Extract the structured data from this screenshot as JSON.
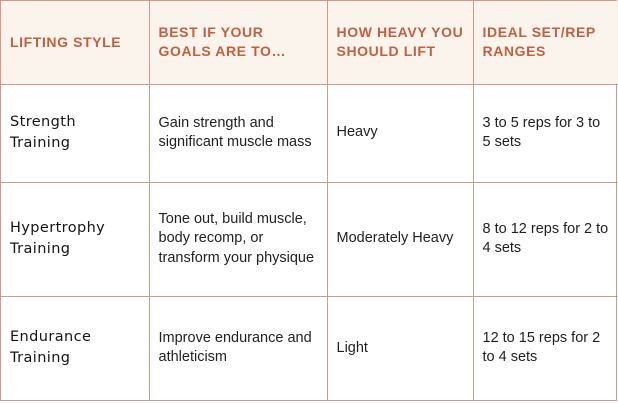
{
  "header": {
    "col1": "LIFTING STYLE",
    "col2": "BEST IF YOUR GOALS ARE TO…",
    "col3": "HOW HEAVY YOU SHOULD LIFT",
    "col4": "IDEAL SET/REP RANGES"
  },
  "rows": [
    {
      "style": "Strength Training",
      "goals": "Gain strength and significant muscle mass",
      "weight": "Heavy",
      "ranges": "3 to 5 reps for 3 to 5 sets"
    },
    {
      "style": "Hypertrophy Training",
      "goals": "Tone out, build muscle, body recomp, or transform your physique",
      "weight": "Moderately Heavy",
      "ranges": "8 to 12 reps for 2 to 4 sets"
    },
    {
      "style": "Endurance Training",
      "goals": "Improve endurance and athleticism",
      "weight": "Light",
      "ranges": "12 to 15 reps for 2 to 4 sets"
    }
  ],
  "colors": {
    "header_text": "#c0603f",
    "header_bg": "#fbf4ec",
    "border": "#cf9a8a",
    "body_text": "#1f1f1f"
  }
}
